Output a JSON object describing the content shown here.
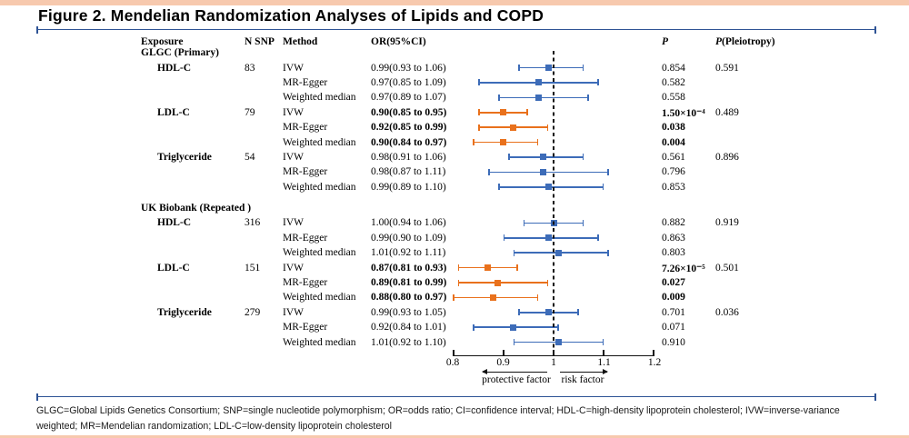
{
  "colors": {
    "top_bar": "#f7c9ae",
    "rule": "#2e5395",
    "normal_marker": "#3d6cb8",
    "significant_marker": "#e9711c",
    "axis_ink": "#111111"
  },
  "title": "Figure 2. Mendelian Randomization Analyses of Lipids and COPD",
  "columns": {
    "exposure": "Exposure",
    "n_snp": "N SNP",
    "method": "Method",
    "or": "OR(95%CI)",
    "p": "P",
    "p_pleiotropy_prefix": "P",
    "p_pleiotropy_suffix": "(Pleiotropy)"
  },
  "chart_data": {
    "type": "forest",
    "xlim": [
      0.8,
      1.2
    ],
    "tick_labels": [
      "0.8",
      "0.9",
      "1",
      "1.1",
      "1.2"
    ],
    "reference_line": 1,
    "annotations": {
      "left": "protective factor",
      "right": "risk factor"
    },
    "groups": [
      {
        "label": "GLGC (Primary)",
        "exposures": [
          {
            "label": "HDL-C",
            "n_snp": "83",
            "rows": [
              {
                "method": "IVW",
                "est": 0.99,
                "lo": 0.93,
                "hi": 1.06,
                "or_text": "0.99(0.93 to 1.06)",
                "p": "0.854",
                "p_pleiotropy": "0.591",
                "significant": false
              },
              {
                "method": "MR-Egger",
                "est": 0.97,
                "lo": 0.85,
                "hi": 1.09,
                "or_text": "0.97(0.85 to 1.09)",
                "p": "0.582",
                "p_pleiotropy": "",
                "significant": false
              },
              {
                "method": "Weighted median",
                "est": 0.97,
                "lo": 0.89,
                "hi": 1.07,
                "or_text": "0.97(0.89 to 1.07)",
                "p": "0.558",
                "p_pleiotropy": "",
                "significant": false
              }
            ]
          },
          {
            "label": "LDL-C",
            "n_snp": "79",
            "rows": [
              {
                "method": "IVW",
                "est": 0.9,
                "lo": 0.85,
                "hi": 0.95,
                "or_text": "0.90(0.85 to 0.95)",
                "p": "1.50×10⁻⁴",
                "p_pleiotropy": "0.489",
                "significant": true
              },
              {
                "method": "MR-Egger",
                "est": 0.92,
                "lo": 0.85,
                "hi": 0.99,
                "or_text": "0.92(0.85 to 0.99)",
                "p": "0.038",
                "p_pleiotropy": "",
                "significant": true
              },
              {
                "method": "Weighted median",
                "est": 0.9,
                "lo": 0.84,
                "hi": 0.97,
                "or_text": "0.90(0.84 to 0.97)",
                "p": "0.004",
                "p_pleiotropy": "",
                "significant": true
              }
            ]
          },
          {
            "label": "Triglyceride",
            "n_snp": "54",
            "rows": [
              {
                "method": "IVW",
                "est": 0.98,
                "lo": 0.91,
                "hi": 1.06,
                "or_text": "0.98(0.91 to 1.06)",
                "p": "0.561",
                "p_pleiotropy": "0.896",
                "significant": false
              },
              {
                "method": "MR-Egger",
                "est": 0.98,
                "lo": 0.87,
                "hi": 1.11,
                "or_text": "0.98(0.87 to 1.11)",
                "p": "0.796",
                "p_pleiotropy": "",
                "significant": false
              },
              {
                "method": "Weighted median",
                "est": 0.99,
                "lo": 0.89,
                "hi": 1.1,
                "or_text": "0.99(0.89 to 1.10)",
                "p": "0.853",
                "p_pleiotropy": "",
                "significant": false
              }
            ]
          }
        ]
      },
      {
        "label": "UK Biobank (Repeated )",
        "exposures": [
          {
            "label": "HDL-C",
            "n_snp": "316",
            "rows": [
              {
                "method": "IVW",
                "est": 1.0,
                "lo": 0.94,
                "hi": 1.06,
                "or_text": "1.00(0.94 to 1.06)",
                "p": "0.882",
                "p_pleiotropy": "0.919",
                "significant": false
              },
              {
                "method": "MR-Egger",
                "est": 0.99,
                "lo": 0.9,
                "hi": 1.09,
                "or_text": "0.99(0.90 to 1.09)",
                "p": "0.863",
                "p_pleiotropy": "",
                "significant": false
              },
              {
                "method": "Weighted median",
                "est": 1.01,
                "lo": 0.92,
                "hi": 1.11,
                "or_text": "1.01(0.92 to 1.11)",
                "p": "0.803",
                "p_pleiotropy": "",
                "significant": false
              }
            ]
          },
          {
            "label": "LDL-C",
            "n_snp": "151",
            "rows": [
              {
                "method": "IVW",
                "est": 0.87,
                "lo": 0.81,
                "hi": 0.93,
                "or_text": "0.87(0.81 to 0.93)",
                "p": "7.26×10⁻⁵",
                "p_pleiotropy": "0.501",
                "significant": true
              },
              {
                "method": "MR-Egger",
                "est": 0.89,
                "lo": 0.81,
                "hi": 0.99,
                "or_text": "0.89(0.81 to 0.99)",
                "p": "0.027",
                "p_pleiotropy": "",
                "significant": true
              },
              {
                "method": "Weighted median",
                "est": 0.88,
                "lo": 0.8,
                "hi": 0.97,
                "or_text": "0.88(0.80 to 0.97)",
                "p": "0.009",
                "p_pleiotropy": "",
                "significant": true
              }
            ]
          },
          {
            "label": "Triglyceride",
            "n_snp": "279",
            "rows": [
              {
                "method": "IVW",
                "est": 0.99,
                "lo": 0.93,
                "hi": 1.05,
                "or_text": "0.99(0.93 to 1.05)",
                "p": "0.701",
                "p_pleiotropy": "0.036",
                "significant": false
              },
              {
                "method": "MR-Egger",
                "est": 0.92,
                "lo": 0.84,
                "hi": 1.01,
                "or_text": "0.92(0.84 to 1.01)",
                "p": "0.071",
                "p_pleiotropy": "",
                "significant": false
              },
              {
                "method": "Weighted median",
                "est": 1.01,
                "lo": 0.92,
                "hi": 1.1,
                "or_text": "1.01(0.92 to 1.10)",
                "p": "0.910",
                "p_pleiotropy": "",
                "significant": false
              }
            ]
          }
        ]
      }
    ]
  },
  "footnote": "GLGC=Global Lipids Genetics Consortium; SNP=single nucleotide polymorphism; OR=odds ratio; CI=confidence interval; HDL-C=high-density lipoprotein cholesterol; IVW=inverse-variance weighted; MR=Mendelian randomization; LDL-C=low-density lipoprotein cholesterol"
}
